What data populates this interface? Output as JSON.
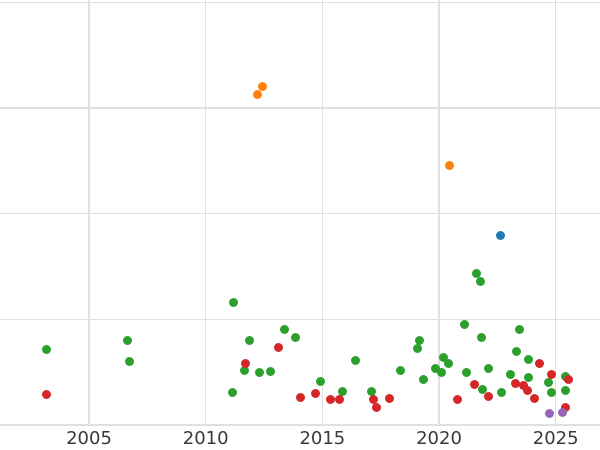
{
  "page": {
    "background": "#ffffff",
    "grid_color": "#e0e0e0",
    "tick_label_color": "#3a3a3a"
  },
  "chart": {
    "title": "",
    "x_tick_labels": [
      "2005",
      "2010",
      "2015",
      "2020",
      "2025"
    ]
  },
  "chart_data": {
    "type": "scatter",
    "title": "",
    "xlabel": "",
    "ylabel": "",
    "grid": true,
    "legend": null,
    "x_axis": {
      "ticks": [
        2005,
        2010,
        2015,
        2020,
        2025
      ],
      "visible_range": [
        2001.2,
        2026.9
      ]
    },
    "y_axis": {
      "labels_visible": false,
      "gridline_values": [
        0,
        1,
        2,
        3,
        4
      ],
      "units": "unlabeled gridline units (bottom gridline = 0, each gridline = +1)"
    },
    "series": [
      {
        "name": "green",
        "color": "#2ca02c",
        "points": [
          [
            2003.19,
            0.71
          ],
          [
            2006.66,
            0.8
          ],
          [
            2006.73,
            0.6
          ],
          [
            2011.14,
            0.31
          ],
          [
            2011.18,
            1.16
          ],
          [
            2011.67,
            0.52
          ],
          [
            2011.87,
            0.8
          ],
          [
            2012.31,
            0.5
          ],
          [
            2012.79,
            0.51
          ],
          [
            2013.36,
            0.9
          ],
          [
            2013.84,
            0.83
          ],
          [
            2014.93,
            0.41
          ],
          [
            2015.87,
            0.32
          ],
          [
            2016.44,
            0.61
          ],
          [
            2017.12,
            0.32
          ],
          [
            2018.36,
            0.52
          ],
          [
            2019.07,
            0.72
          ],
          [
            2019.16,
            0.8
          ],
          [
            2019.32,
            0.43
          ],
          [
            2019.83,
            0.53
          ],
          [
            2020.09,
            0.5
          ],
          [
            2020.2,
            0.64
          ],
          [
            2020.4,
            0.58
          ],
          [
            2021.1,
            0.95
          ],
          [
            2021.19,
            0.5
          ],
          [
            2021.62,
            1.43
          ],
          [
            2021.79,
            1.36
          ],
          [
            2021.81,
            0.83
          ],
          [
            2021.87,
            0.34
          ],
          [
            2022.11,
            0.53
          ],
          [
            2022.69,
            0.31
          ],
          [
            2023.07,
            0.48
          ],
          [
            2023.33,
            0.7
          ],
          [
            2023.43,
            0.9
          ],
          [
            2023.83,
            0.62
          ],
          [
            2023.83,
            0.45
          ],
          [
            2024.71,
            0.4
          ],
          [
            2024.84,
            0.31
          ],
          [
            2025.42,
            0.46
          ],
          [
            2025.43,
            0.33
          ]
        ]
      },
      {
        "name": "red",
        "color": "#d62728",
        "points": [
          [
            2003.17,
            0.29
          ],
          [
            2011.71,
            0.58
          ],
          [
            2013.13,
            0.73
          ],
          [
            2014.06,
            0.26
          ],
          [
            2014.71,
            0.3
          ],
          [
            2015.36,
            0.24
          ],
          [
            2015.73,
            0.24
          ],
          [
            2017.21,
            0.24
          ],
          [
            2017.3,
            0.17
          ],
          [
            2017.87,
            0.25
          ],
          [
            2020.8,
            0.24
          ],
          [
            2021.5,
            0.38
          ],
          [
            2022.13,
            0.27
          ],
          [
            2023.27,
            0.39
          ],
          [
            2023.6,
            0.37
          ],
          [
            2023.8,
            0.33
          ],
          [
            2024.08,
            0.25
          ],
          [
            2024.3,
            0.58
          ],
          [
            2024.83,
            0.48
          ],
          [
            2025.43,
            0.17
          ],
          [
            2025.56,
            0.43
          ]
        ]
      },
      {
        "name": "orange",
        "color": "#ff7f0e",
        "points": [
          [
            2012.2,
            3.13
          ],
          [
            2012.43,
            3.2
          ],
          [
            2020.46,
            2.46
          ]
        ]
      },
      {
        "name": "blue",
        "color": "#1f77b4",
        "points": [
          [
            2022.63,
            1.79
          ]
        ]
      },
      {
        "name": "purple",
        "color": "#9467bd",
        "points": [
          [
            2024.74,
            0.11
          ],
          [
            2025.27,
            0.12
          ]
        ]
      }
    ]
  }
}
